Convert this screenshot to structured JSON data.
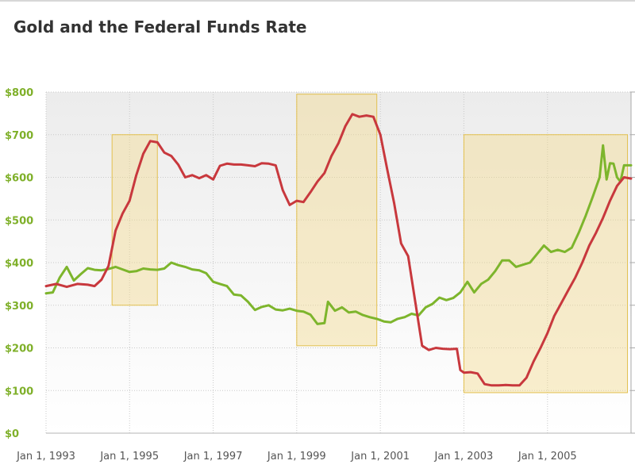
{
  "chart_data": {
    "type": "line",
    "title": "Gold and the Federal Funds Rate",
    "xlabel": "",
    "ylabel": "",
    "x_range": [
      "1993-01-01",
      "2007-01-01"
    ],
    "ylim": [
      0,
      800
    ],
    "y_ticks": [
      {
        "value": 0,
        "label": "$0"
      },
      {
        "value": 100,
        "label": "$100"
      },
      {
        "value": 200,
        "label": "$200"
      },
      {
        "value": 300,
        "label": "$300"
      },
      {
        "value": 400,
        "label": "$400"
      },
      {
        "value": 500,
        "label": "$500"
      },
      {
        "value": 600,
        "label": "$600"
      },
      {
        "value": 700,
        "label": "$700"
      },
      {
        "value": 800,
        "label": "$800"
      }
    ],
    "x_ticks": [
      {
        "date": "1993-01-01",
        "label": "Jan 1, 1993"
      },
      {
        "date": "1995-01-01",
        "label": "Jan 1, 1995"
      },
      {
        "date": "1997-01-01",
        "label": "Jan 1, 1997"
      },
      {
        "date": "1999-01-01",
        "label": "Jan 1, 1999"
      },
      {
        "date": "2001-01-01",
        "label": "Jan 1, 2001"
      },
      {
        "date": "2003-01-01",
        "label": "Jan 1, 2003"
      },
      {
        "date": "2005-01-01",
        "label": "Jan 1, 2005"
      }
    ],
    "grid": true,
    "legend": "none",
    "highlight_regions": [
      {
        "x_start": "1994-08-01",
        "x_end": "1995-09-01",
        "y_start": 300,
        "y_end": 700
      },
      {
        "x_start": "1999-01-01",
        "x_end": "2000-12-01",
        "y_start": 205,
        "y_end": 795
      },
      {
        "x_start": "2003-01-01",
        "x_end": "2006-12-01",
        "y_start": 95,
        "y_end": 700
      }
    ],
    "series": [
      {
        "color": "#7db52c",
        "points": [
          [
            "1993-01-01",
            328
          ],
          [
            "1993-03-01",
            330
          ],
          [
            "1993-05-01",
            365
          ],
          [
            "1993-07-01",
            390
          ],
          [
            "1993-09-01",
            358
          ],
          [
            "1993-11-01",
            373
          ],
          [
            "1994-01-01",
            387
          ],
          [
            "1994-03-01",
            383
          ],
          [
            "1994-05-01",
            382
          ],
          [
            "1994-07-01",
            385
          ],
          [
            "1994-09-01",
            390
          ],
          [
            "1994-11-01",
            384
          ],
          [
            "1995-01-01",
            378
          ],
          [
            "1995-03-01",
            380
          ],
          [
            "1995-05-01",
            386
          ],
          [
            "1995-07-01",
            384
          ],
          [
            "1995-09-01",
            383
          ],
          [
            "1995-11-01",
            386
          ],
          [
            "1996-01-01",
            400
          ],
          [
            "1996-03-01",
            394
          ],
          [
            "1996-05-01",
            390
          ],
          [
            "1996-07-01",
            384
          ],
          [
            "1996-09-01",
            382
          ],
          [
            "1996-11-01",
            375
          ],
          [
            "1997-01-01",
            355
          ],
          [
            "1997-03-01",
            350
          ],
          [
            "1997-05-01",
            345
          ],
          [
            "1997-07-01",
            325
          ],
          [
            "1997-09-01",
            323
          ],
          [
            "1997-11-01",
            308
          ],
          [
            "1998-01-01",
            289
          ],
          [
            "1998-03-01",
            296
          ],
          [
            "1998-05-01",
            300
          ],
          [
            "1998-07-01",
            290
          ],
          [
            "1998-09-01",
            288
          ],
          [
            "1998-11-01",
            292
          ],
          [
            "1999-01-01",
            287
          ],
          [
            "1999-03-01",
            285
          ],
          [
            "1999-05-01",
            278
          ],
          [
            "1999-07-01",
            256
          ],
          [
            "1999-09-01",
            258
          ],
          [
            "1999-10-01",
            308
          ],
          [
            "1999-12-01",
            287
          ],
          [
            "2000-02-01",
            295
          ],
          [
            "2000-04-01",
            283
          ],
          [
            "2000-06-01",
            285
          ],
          [
            "2000-08-01",
            277
          ],
          [
            "2000-10-01",
            272
          ],
          [
            "2000-12-01",
            268
          ],
          [
            "2001-02-01",
            262
          ],
          [
            "2001-04-01",
            260
          ],
          [
            "2001-06-01",
            268
          ],
          [
            "2001-08-01",
            272
          ],
          [
            "2001-10-01",
            280
          ],
          [
            "2001-12-01",
            276
          ],
          [
            "2002-02-01",
            295
          ],
          [
            "2002-04-01",
            303
          ],
          [
            "2002-06-01",
            318
          ],
          [
            "2002-08-01",
            312
          ],
          [
            "2002-10-01",
            317
          ],
          [
            "2002-12-01",
            330
          ],
          [
            "2003-02-01",
            355
          ],
          [
            "2003-04-01",
            330
          ],
          [
            "2003-06-01",
            350
          ],
          [
            "2003-08-01",
            360
          ],
          [
            "2003-10-01",
            380
          ],
          [
            "2003-12-01",
            405
          ],
          [
            "2004-02-01",
            405
          ],
          [
            "2004-04-01",
            390
          ],
          [
            "2004-06-01",
            395
          ],
          [
            "2004-08-01",
            400
          ],
          [
            "2004-10-01",
            420
          ],
          [
            "2004-12-01",
            440
          ],
          [
            "2005-02-01",
            425
          ],
          [
            "2005-04-01",
            430
          ],
          [
            "2005-06-01",
            425
          ],
          [
            "2005-08-01",
            435
          ],
          [
            "2005-10-01",
            470
          ],
          [
            "2005-12-01",
            510
          ],
          [
            "2006-02-01",
            555
          ],
          [
            "2006-04-01",
            600
          ],
          [
            "2006-05-01",
            675
          ],
          [
            "2006-06-01",
            595
          ],
          [
            "2006-07-01",
            633
          ],
          [
            "2006-08-01",
            632
          ],
          [
            "2006-09-01",
            600
          ],
          [
            "2006-10-01",
            590
          ],
          [
            "2006-11-01",
            628
          ],
          [
            "2007-01-01",
            628
          ]
        ]
      },
      {
        "color": "#c8383d",
        "points": [
          [
            "1993-01-01",
            345
          ],
          [
            "1993-04-01",
            350
          ],
          [
            "1993-07-01",
            343
          ],
          [
            "1993-10-01",
            350
          ],
          [
            "1994-01-01",
            348
          ],
          [
            "1994-03-01",
            345
          ],
          [
            "1994-05-01",
            360
          ],
          [
            "1994-07-01",
            392
          ],
          [
            "1994-09-01",
            475
          ],
          [
            "1994-11-01",
            515
          ],
          [
            "1995-01-01",
            545
          ],
          [
            "1995-03-01",
            605
          ],
          [
            "1995-05-01",
            655
          ],
          [
            "1995-07-01",
            685
          ],
          [
            "1995-09-01",
            682
          ],
          [
            "1995-11-01",
            658
          ],
          [
            "1996-01-01",
            650
          ],
          [
            "1996-03-01",
            630
          ],
          [
            "1996-05-01",
            600
          ],
          [
            "1996-07-01",
            605
          ],
          [
            "1996-09-01",
            598
          ],
          [
            "1996-11-01",
            605
          ],
          [
            "1997-01-01",
            595
          ],
          [
            "1997-03-01",
            627
          ],
          [
            "1997-05-01",
            632
          ],
          [
            "1997-07-01",
            630
          ],
          [
            "1997-09-01",
            630
          ],
          [
            "1997-11-01",
            628
          ],
          [
            "1998-01-01",
            626
          ],
          [
            "1998-03-01",
            633
          ],
          [
            "1998-05-01",
            632
          ],
          [
            "1998-07-01",
            628
          ],
          [
            "1998-09-01",
            570
          ],
          [
            "1998-11-01",
            535
          ],
          [
            "1999-01-01",
            545
          ],
          [
            "1999-03-01",
            542
          ],
          [
            "1999-05-01",
            565
          ],
          [
            "1999-07-01",
            590
          ],
          [
            "1999-09-01",
            610
          ],
          [
            "1999-11-01",
            650
          ],
          [
            "2000-01-01",
            680
          ],
          [
            "2000-03-01",
            720
          ],
          [
            "2000-05-01",
            748
          ],
          [
            "2000-07-01",
            742
          ],
          [
            "2000-09-01",
            745
          ],
          [
            "2000-11-01",
            742
          ],
          [
            "2001-01-01",
            700
          ],
          [
            "2001-03-01",
            620
          ],
          [
            "2001-05-01",
            540
          ],
          [
            "2001-07-01",
            445
          ],
          [
            "2001-09-01",
            415
          ],
          [
            "2001-11-01",
            310
          ],
          [
            "2002-01-01",
            205
          ],
          [
            "2002-03-01",
            195
          ],
          [
            "2002-05-01",
            200
          ],
          [
            "2002-07-01",
            198
          ],
          [
            "2002-09-01",
            197
          ],
          [
            "2002-11-01",
            198
          ],
          [
            "2002-12-01",
            148
          ],
          [
            "2003-01-01",
            142
          ],
          [
            "2003-03-01",
            143
          ],
          [
            "2003-05-01",
            140
          ],
          [
            "2003-07-01",
            115
          ],
          [
            "2003-09-01",
            112
          ],
          [
            "2003-11-01",
            112
          ],
          [
            "2004-01-01",
            113
          ],
          [
            "2004-03-01",
            112
          ],
          [
            "2004-05-01",
            112
          ],
          [
            "2004-07-01",
            130
          ],
          [
            "2004-09-01",
            168
          ],
          [
            "2004-11-01",
            200
          ],
          [
            "2005-01-01",
            235
          ],
          [
            "2005-03-01",
            275
          ],
          [
            "2005-05-01",
            305
          ],
          [
            "2005-07-01",
            335
          ],
          [
            "2005-09-01",
            365
          ],
          [
            "2005-11-01",
            400
          ],
          [
            "2006-01-01",
            440
          ],
          [
            "2006-03-01",
            470
          ],
          [
            "2006-05-01",
            505
          ],
          [
            "2006-07-01",
            545
          ],
          [
            "2006-09-01",
            580
          ],
          [
            "2006-11-01",
            600
          ],
          [
            "2007-01-01",
            597
          ]
        ]
      }
    ]
  }
}
